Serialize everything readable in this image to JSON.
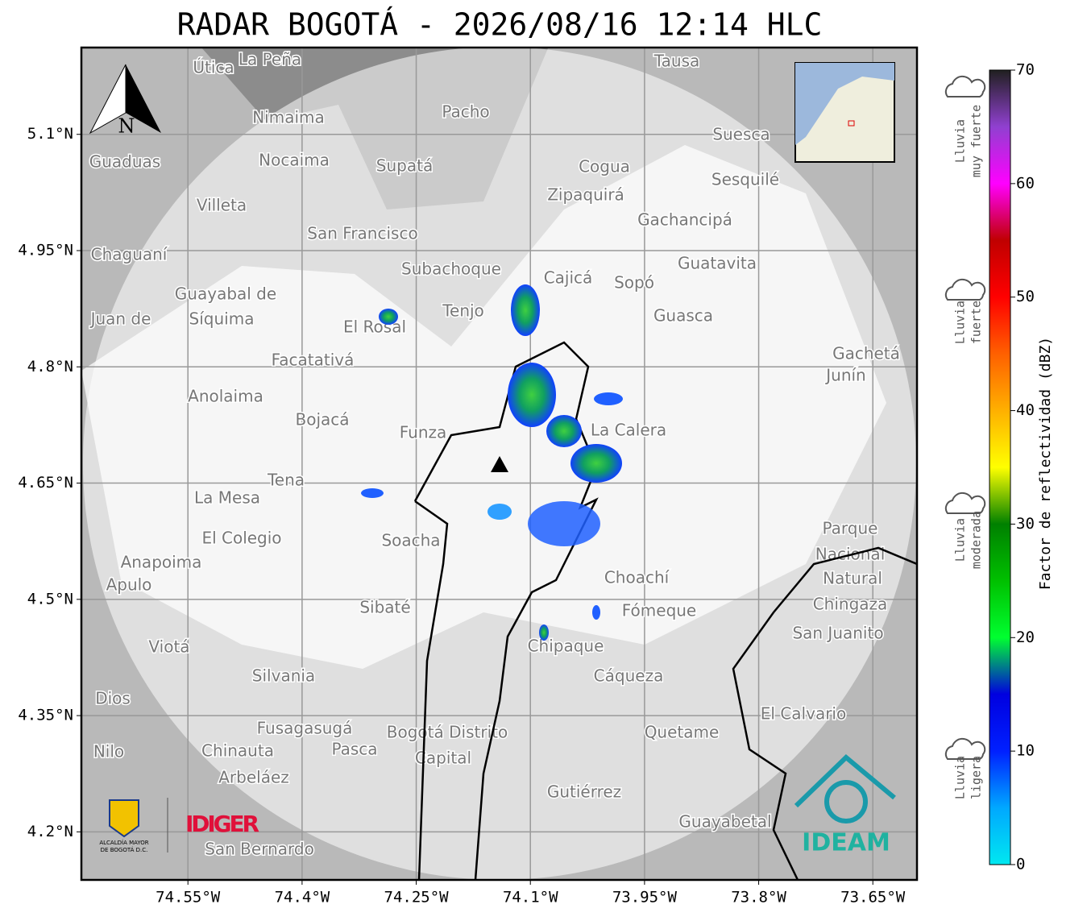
{
  "map": {
    "title": "RADAR BOGOTÁ - 2026/08/16 12:14 HLC",
    "xlim": [
      -74.69,
      -73.592
    ],
    "ylim": [
      4.138,
      5.212
    ],
    "xticks": [
      {
        "value": -74.55,
        "label": "74.55°W"
      },
      {
        "value": -74.4,
        "label": "74.4°W"
      },
      {
        "value": -74.25,
        "label": "74.25°W"
      },
      {
        "value": -74.1,
        "label": "74.1°W"
      },
      {
        "value": -73.95,
        "label": "73.95°W"
      },
      {
        "value": -73.8,
        "label": "73.8°W"
      },
      {
        "value": -73.65,
        "label": "73.65°W"
      }
    ],
    "yticks": [
      {
        "value": 5.1,
        "label": "5.1°N"
      },
      {
        "value": 4.95,
        "label": "4.95°N"
      },
      {
        "value": 4.8,
        "label": "4.8°N"
      },
      {
        "value": 4.65,
        "label": "4.65°N"
      },
      {
        "value": 4.5,
        "label": "4.5°N"
      },
      {
        "value": 4.35,
        "label": "4.35°N"
      },
      {
        "value": 4.2,
        "label": "4.2°N"
      }
    ],
    "grid": true,
    "north": "N",
    "places": [
      "La Peña",
      "Útica",
      "Tausa",
      "Pacho",
      "Nimaima",
      "Guaduas",
      "Nocaima",
      "Supatá",
      "Cogua",
      "Suesca",
      "Sesquilé",
      "Zipaquirá",
      "Villeta",
      "Gachancipá",
      "San Francisco",
      "Chaguaní",
      "Guatavita",
      "Subachoque",
      "Cajicá",
      "Sopó",
      "Guayabal de",
      "Síquima",
      "Tenjo",
      "Guasca",
      "Juan de",
      "El Rosal",
      "Facatativá",
      "Gachetá",
      "Junín",
      "Anolaima",
      "Bojacá",
      "Funza",
      "La Calera",
      "Tena",
      "La Mesa",
      "Parque",
      "El Colegio",
      "Soacha",
      "Nacional",
      "Anapoima",
      "Natural",
      "Choachí",
      "Apulo",
      "Chingaza",
      "Sibaté",
      "Fómeque",
      "San Juanito",
      "Viotá",
      "Chipaque",
      "Silvania",
      "Cáqueza",
      "Dios",
      "El Calvario",
      "Fusagasugá",
      "Bogotá Distrito",
      "Quetame",
      "Nilo",
      "Chinauta",
      "Pasca",
      "Capital",
      "Arbeláez",
      "Gutiérrez",
      "Guayabetal",
      "San Bernardo"
    ],
    "colorbar": {
      "label": "Factor de reflectividad (dBZ)",
      "lim": [
        0,
        70
      ],
      "ticks": [
        0,
        10,
        20,
        30,
        40,
        50,
        60,
        70
      ],
      "colormap": [
        "#00e8f0",
        "#00a8ff",
        "#0020ff",
        "#0000e0",
        "#00ff30",
        "#00c000",
        "#008000",
        "#ffff00",
        "#ffb000",
        "#ff6000",
        "#ff0000",
        "#c00000",
        "#ff00ff",
        "#9040d0",
        "#202020"
      ]
    },
    "rain_levels": [
      [
        "Lluvia",
        "muy fuerte"
      ],
      [
        "Lluvia",
        "fuerte"
      ],
      [
        "Lluvia",
        "moderada"
      ],
      [
        "Lluvia",
        "ligera"
      ]
    ],
    "logos": {
      "idiger": "IDIGER",
      "alcaldia": [
        "ALCALDÍA MAYOR",
        "DE BOGOTÁ D.C."
      ],
      "ideam": "IDEAM"
    }
  }
}
